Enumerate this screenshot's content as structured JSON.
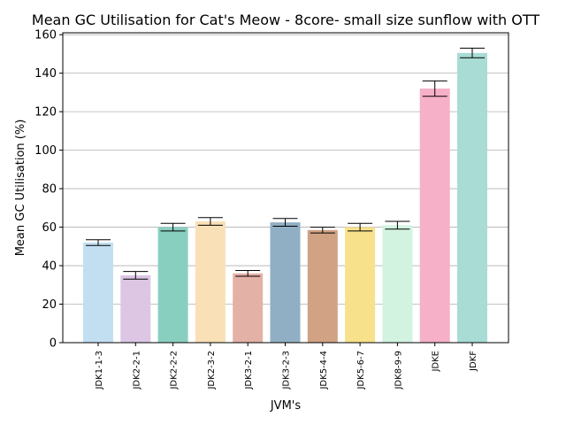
{
  "chart_data": {
    "type": "bar",
    "title": "Mean GC Utilisation for Cat's Meow - 8core- small size sunflow with OTT",
    "xlabel": "JVM's",
    "ylabel": "Mean GC Utilisation (%)",
    "ylim": [
      0,
      161
    ],
    "yticks": [
      0,
      20,
      40,
      60,
      80,
      100,
      120,
      140,
      160
    ],
    "grid": "horizontal",
    "categories": [
      "JDK1-1-3",
      "JDK2-2-1",
      "JDK2-2-2",
      "JDK2-3-2",
      "JDK3-2-1",
      "JDK3-2-3",
      "JDK5-4-4",
      "JDK5-6-7",
      "JDK8-9-9",
      "JDKE",
      "JDKF"
    ],
    "values": [
      52,
      35,
      60,
      63,
      36,
      62.5,
      58.5,
      60,
      61,
      132,
      150.5
    ],
    "errors": [
      1.5,
      2,
      2,
      2,
      1.5,
      2,
      1.5,
      2,
      2,
      4,
      2.5
    ],
    "colors": [
      "#c2dff2",
      "#dcc6e4",
      "#89cfc0",
      "#f9e0b6",
      "#e4b1a6",
      "#91afc4",
      "#d1a283",
      "#f7e28b",
      "#d3f3e1",
      "#f6b0c8",
      "#a8dcd5"
    ]
  }
}
